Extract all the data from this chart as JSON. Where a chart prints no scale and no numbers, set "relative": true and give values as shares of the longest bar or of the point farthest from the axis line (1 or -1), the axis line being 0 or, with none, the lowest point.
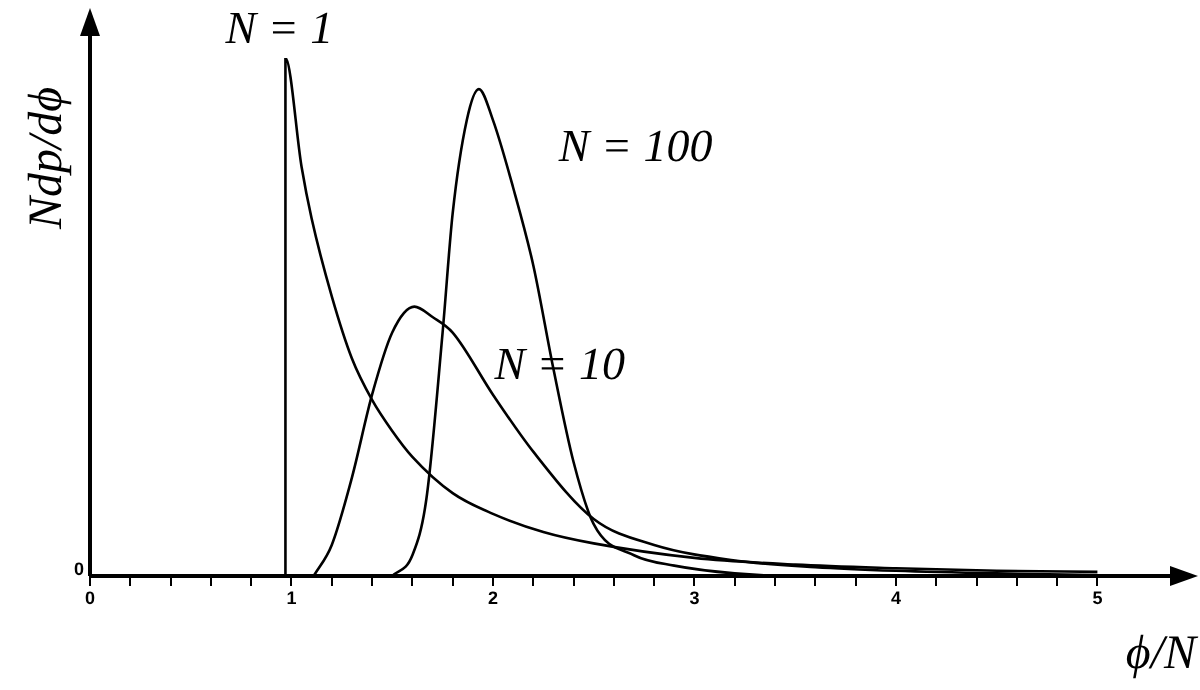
{
  "chart_data": {
    "type": "line",
    "relative": true,
    "xlabel": "ϕ/N",
    "ylabel": "Ndp/dϕ",
    "annotations": [
      "0"
    ],
    "legend": false,
    "grid": false,
    "marker": "none",
    "line_style": "solid",
    "xlim": [
      0,
      5.4
    ],
    "xticks": [
      0,
      {
        "value": 0.2,
        "label": null
      },
      {
        "value": 0.4,
        "label": null
      },
      {
        "value": 0.6,
        "label": null
      },
      {
        "value": 0.8,
        "label": null
      },
      1,
      {
        "value": 1.2,
        "label": null
      },
      {
        "value": 1.4,
        "label": null
      },
      {
        "value": 1.6,
        "label": null
      },
      {
        "value": 1.8,
        "label": null
      },
      2,
      {
        "value": 2.2,
        "label": null
      },
      {
        "value": 2.4,
        "label": null
      },
      {
        "value": 2.6,
        "label": null
      },
      {
        "value": 2.8,
        "label": null
      },
      3,
      {
        "value": 3.2,
        "label": null
      },
      {
        "value": 3.4,
        "label": null
      },
      {
        "value": 3.6,
        "label": null
      },
      {
        "value": 3.8,
        "label": null
      },
      4,
      {
        "value": 4.2,
        "label": null
      },
      {
        "value": 4.4,
        "label": null
      },
      {
        "value": 4.6,
        "label": null
      },
      {
        "value": 4.8,
        "label": null
      },
      5
    ],
    "series": [
      {
        "name": "N = 1",
        "color": "#000000",
        "x": [
          0.97,
          0.97,
          1.05,
          1.1,
          1.2,
          1.3,
          1.4,
          1.5,
          1.6,
          1.8,
          2.0,
          2.25,
          2.5,
          3.0,
          3.5,
          4.0,
          4.5,
          5.0
        ],
        "values": [
          0,
          1,
          0.79,
          0.69,
          0.54,
          0.42,
          0.34,
          0.28,
          0.23,
          0.16,
          0.12,
          0.085,
          0.063,
          0.035,
          0.022,
          0.015,
          0.01,
          0.008
        ]
      },
      {
        "name": "N = 10",
        "color": "#000000",
        "x": [
          1.11,
          1.2,
          1.3,
          1.4,
          1.5,
          1.61,
          1.7,
          1.8,
          2.0,
          2.2,
          2.5,
          2.8,
          3.2,
          3.6,
          4.0,
          4.5,
          5.0
        ],
        "values": [
          0,
          0.06,
          0.19,
          0.35,
          0.47,
          0.52,
          0.5,
          0.47,
          0.35,
          0.24,
          0.11,
          0.06,
          0.03,
          0.017,
          0.01,
          0.005,
          0.002
        ]
      },
      {
        "name": "N = 100",
        "color": "#000000",
        "x": [
          1.5,
          1.6,
          1.67,
          1.75,
          1.8,
          1.87,
          1.93,
          2.0,
          2.1,
          2.2,
          2.3,
          2.4,
          2.5,
          2.7,
          2.9,
          3.2,
          3.5,
          4.0,
          5.0
        ],
        "values": [
          0,
          0.04,
          0.15,
          0.47,
          0.7,
          0.88,
          0.94,
          0.88,
          0.75,
          0.6,
          0.4,
          0.22,
          0.1,
          0.04,
          0.02,
          0.005,
          0,
          0,
          0
        ]
      }
    ]
  }
}
